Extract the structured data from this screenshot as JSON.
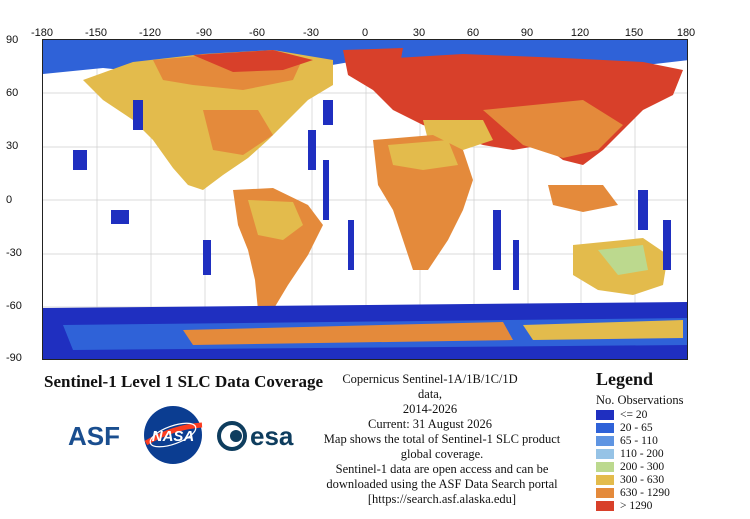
{
  "map": {
    "lon_ticks": [
      "-180",
      "-150",
      "-120",
      "-90",
      "-60",
      "-30",
      "0",
      "30",
      "60",
      "90",
      "120",
      "150",
      "180"
    ],
    "lat_ticks": [
      "90",
      "60",
      "30",
      "0",
      "-30",
      "-60",
      "-90"
    ]
  },
  "title": "Sentinel-1 Level 1 SLC Data Coverage",
  "info": {
    "line1": "Copernicus Sentinel-1A/1B/1C/1D data,",
    "line2": "2014-2026",
    "line3": "Current: 31 August 2026"
  },
  "description": {
    "line1": "Map shows the total of Sentinel-1 SLC product",
    "line2": "global coverage.",
    "line3": "Sentinel-1 data are open access and can be",
    "line4": "downloaded using the ASF Data Search portal",
    "line5": "[https://search.asf.alaska.edu]"
  },
  "legend": {
    "title": "Legend",
    "subtitle": "No. Observations",
    "items": [
      {
        "label": "<= 20",
        "color": "#1f2fc0"
      },
      {
        "label": "20 - 65",
        "color": "#2f62d8"
      },
      {
        "label": "65 - 110",
        "color": "#5f95e2"
      },
      {
        "label": "110 - 200",
        "color": "#96c3e6"
      },
      {
        "label": "200 - 300",
        "color": "#bcd98e"
      },
      {
        "label": "300 - 630",
        "color": "#e3bb4c"
      },
      {
        "label": "630 - 1290",
        "color": "#e48a3b"
      },
      {
        "label": "> 1290",
        "color": "#d8402a"
      }
    ]
  },
  "logos": {
    "asf": "ASF",
    "nasa": "NASA",
    "esa": "esa"
  }
}
